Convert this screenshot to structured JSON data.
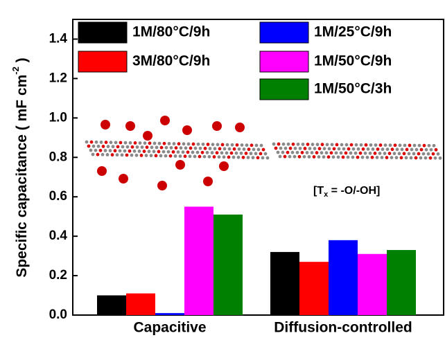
{
  "chart_data": {
    "type": "bar",
    "y_label": {
      "text": "Specific capacitance ( mF cm",
      "superscript": "-2",
      "suffix": " )"
    },
    "annotation": {
      "text": "[T",
      "subscript": "x",
      "suffix": " = -O/-OH]"
    },
    "categories": [
      "Capacitive",
      "Diffusion-controlled"
    ],
    "series": [
      {
        "name": "1M/80°C/9h",
        "color": "#000000",
        "values": [
          0.1,
          0.32
        ]
      },
      {
        "name": "3M/80°C/9h",
        "color": "#ff0000",
        "values": [
          0.11,
          0.27
        ]
      },
      {
        "name": "1M/25°C/9h",
        "color": "#0000ff",
        "values": [
          0.01,
          0.38
        ]
      },
      {
        "name": "1M/50°C/9h",
        "color": "#ff00ff",
        "values": [
          0.55,
          0.31
        ]
      },
      {
        "name": "1M/50°C/3h",
        "color": "#008000",
        "values": [
          0.51,
          0.33
        ]
      }
    ],
    "ylim": [
      0,
      1.5
    ],
    "yticks": [
      {
        "value": 0,
        "label": "0.0"
      },
      0.2,
      0.4,
      0.6,
      0.8,
      {
        "value": 1,
        "label": "1.0"
      },
      1.2,
      1.4
    ]
  }
}
